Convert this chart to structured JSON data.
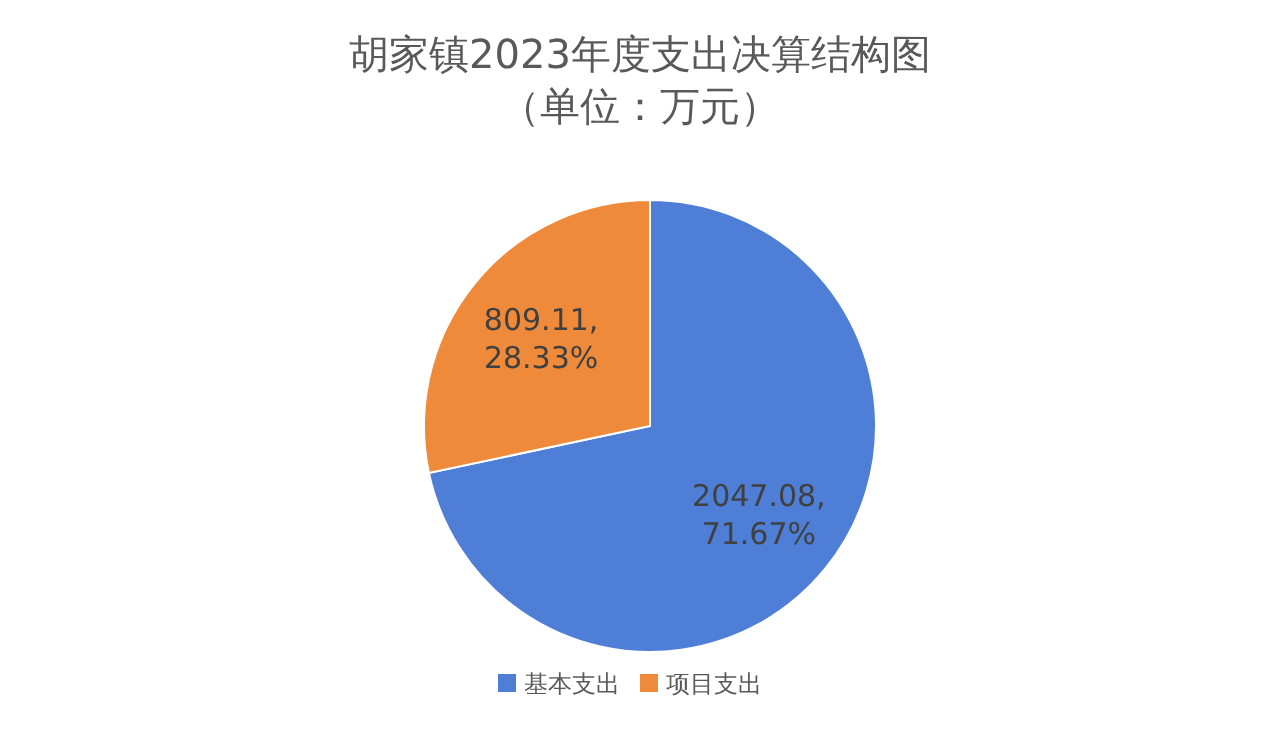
{
  "chart_data": {
    "type": "pie",
    "title": "胡家镇2023年度支出决算结构图",
    "subtitle": "（单位：万元）",
    "categories": [
      "基本支出",
      "项目支出"
    ],
    "values": [
      2047.08,
      809.11
    ],
    "colors": [
      "#4f7ed6",
      "#ee8a3a"
    ],
    "value_labels": [
      "2047.08,\n71.67%",
      "809.11,\n28.33%"
    ],
    "legend": "bottom"
  }
}
